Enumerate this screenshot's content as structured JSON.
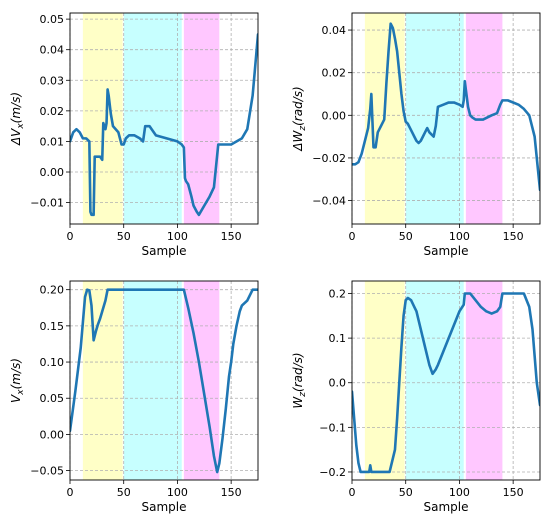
{
  "chart_data": [
    {
      "type": "line",
      "xlabel": "Sample",
      "ylabel": "ΔV",
      "ylabel_sub": "x",
      "ylabel_unit": "(m/s)",
      "xlim": [
        0,
        175
      ],
      "ylim": [
        -0.017,
        0.052
      ],
      "xticks": [
        0,
        50,
        100,
        150
      ],
      "xtick_labels": [
        "0",
        "50",
        "100",
        "150"
      ],
      "yticks": [
        -0.01,
        0.0,
        0.01,
        0.02,
        0.03,
        0.04,
        0.05
      ],
      "ytick_labels": [
        "−0.01",
        "0.00",
        "0.01",
        "0.02",
        "0.03",
        "0.04",
        "0.05"
      ],
      "grid": true,
      "bands": [
        {
          "x0": 12,
          "x1": 49,
          "color": "#ffff99"
        },
        {
          "x0": 50,
          "x1": 104,
          "color": "#99ffff"
        },
        {
          "x0": 106,
          "x1": 139,
          "color": "#ff99ff"
        }
      ],
      "series": [
        {
          "color": "#1f77b4",
          "x": [
            0,
            3,
            6,
            9,
            12,
            15,
            18,
            19,
            20,
            22,
            23,
            25,
            28,
            30,
            31,
            32,
            33,
            34,
            35,
            36,
            38,
            40,
            45,
            48,
            50,
            52,
            55,
            60,
            65,
            68,
            70,
            72,
            74,
            76,
            80,
            90,
            100,
            104,
            106,
            107,
            108,
            110,
            113,
            115,
            118,
            120,
            125,
            130,
            134,
            138,
            140,
            150,
            160,
            165,
            170,
            175
          ],
          "y": [
            0.01,
            0.013,
            0.014,
            0.013,
            0.011,
            0.011,
            0.01,
            -0.013,
            -0.014,
            -0.014,
            0.005,
            0.005,
            0.005,
            0.004,
            0.016,
            0.015,
            0.014,
            0.016,
            0.027,
            0.025,
            0.019,
            0.015,
            0.013,
            0.009,
            0.009,
            0.011,
            0.012,
            0.012,
            0.011,
            0.01,
            0.015,
            0.015,
            0.015,
            0.014,
            0.012,
            0.011,
            0.01,
            0.009,
            0.008,
            -0.002,
            -0.003,
            -0.004,
            -0.008,
            -0.011,
            -0.013,
            -0.014,
            -0.011,
            -0.008,
            -0.005,
            0.009,
            0.009,
            0.009,
            0.011,
            0.014,
            0.025,
            0.045
          ]
        }
      ]
    },
    {
      "type": "line",
      "xlabel": "Sample",
      "ylabel": "ΔW",
      "ylabel_sub": "z",
      "ylabel_unit": "(rad/s)",
      "xlim": [
        0,
        175
      ],
      "ylim": [
        -0.051,
        0.048
      ],
      "xticks": [
        0,
        50,
        100,
        150
      ],
      "xtick_labels": [
        "0",
        "50",
        "100",
        "150"
      ],
      "yticks": [
        -0.04,
        -0.02,
        0.0,
        0.02,
        0.04
      ],
      "ytick_labels": [
        "−0.04",
        "−0.02",
        "0.00",
        "0.02",
        "0.04"
      ],
      "grid": true,
      "bands": [
        {
          "x0": 12,
          "x1": 49,
          "color": "#ffff99"
        },
        {
          "x0": 50,
          "x1": 104,
          "color": "#99ffff"
        },
        {
          "x0": 106,
          "x1": 140,
          "color": "#ff99ff"
        }
      ],
      "series": [
        {
          "color": "#1f77b4",
          "x": [
            0,
            3,
            6,
            9,
            12,
            15,
            17,
            18,
            20,
            22,
            24,
            26,
            28,
            30,
            32,
            34,
            36,
            38,
            40,
            42,
            44,
            46,
            48,
            50,
            52,
            54,
            56,
            58,
            60,
            62,
            64,
            66,
            68,
            70,
            72,
            74,
            76,
            78,
            80,
            85,
            90,
            95,
            100,
            103,
            104,
            105,
            106,
            108,
            110,
            112,
            115,
            118,
            122,
            126,
            130,
            135,
            138,
            140,
            145,
            150,
            155,
            160,
            165,
            170,
            175
          ],
          "y": [
            -0.023,
            -0.023,
            -0.022,
            -0.018,
            -0.012,
            -0.006,
            0.003,
            0.01,
            -0.015,
            -0.015,
            -0.008,
            -0.006,
            -0.004,
            -0.002,
            0.015,
            0.03,
            0.043,
            0.041,
            0.036,
            0.03,
            0.02,
            0.01,
            0.002,
            -0.003,
            -0.004,
            -0.006,
            -0.008,
            -0.01,
            -0.012,
            -0.013,
            -0.012,
            -0.01,
            -0.008,
            -0.006,
            -0.008,
            -0.009,
            -0.01,
            -0.005,
            0.004,
            0.005,
            0.006,
            0.006,
            0.005,
            0.004,
            0.007,
            0.016,
            0.012,
            0.004,
            0.0,
            -0.001,
            -0.002,
            -0.002,
            -0.002,
            -0.001,
            0.0,
            0.001,
            0.005,
            0.007,
            0.007,
            0.006,
            0.005,
            0.003,
            0.0,
            -0.01,
            -0.035
          ]
        }
      ]
    },
    {
      "type": "line",
      "xlabel": "Sample",
      "ylabel": "V",
      "ylabel_sub": "x",
      "ylabel_unit": "(m/s)",
      "xlim": [
        0,
        175
      ],
      "ylim": [
        -0.063,
        0.212
      ],
      "xticks": [
        0,
        50,
        100,
        150
      ],
      "xtick_labels": [
        "0",
        "50",
        "100",
        "150"
      ],
      "yticks": [
        -0.05,
        0.0,
        0.05,
        0.1,
        0.15,
        0.2
      ],
      "ytick_labels": [
        "−0.05",
        "0.00",
        "0.05",
        "0.10",
        "0.15",
        "0.20"
      ],
      "grid": true,
      "bands": [
        {
          "x0": 12,
          "x1": 49,
          "color": "#ffff99"
        },
        {
          "x0": 50,
          "x1": 104,
          "color": "#99ffff"
        },
        {
          "x0": 106,
          "x1": 139,
          "color": "#ff99ff"
        }
      ],
      "series": [
        {
          "color": "#1f77b4",
          "x": [
            0,
            5,
            10,
            14,
            16,
            18,
            20,
            22,
            24,
            26,
            28,
            30,
            33,
            35,
            37,
            40,
            45,
            50,
            55,
            60,
            70,
            80,
            90,
            100,
            104,
            106,
            110,
            115,
            120,
            125,
            130,
            134,
            137,
            139,
            142,
            145,
            148,
            150,
            152,
            155,
            158,
            160,
            165,
            170,
            175
          ],
          "y": [
            0.005,
            0.06,
            0.12,
            0.19,
            0.2,
            0.199,
            0.178,
            0.13,
            0.142,
            0.152,
            0.16,
            0.17,
            0.185,
            0.2,
            0.2,
            0.2,
            0.2,
            0.2,
            0.2,
            0.2,
            0.2,
            0.2,
            0.2,
            0.2,
            0.2,
            0.2,
            0.175,
            0.14,
            0.1,
            0.055,
            0.01,
            -0.03,
            -0.052,
            -0.04,
            -0.005,
            0.035,
            0.08,
            0.1,
            0.125,
            0.15,
            0.17,
            0.178,
            0.185,
            0.2,
            0.2
          ]
        }
      ]
    },
    {
      "type": "line",
      "xlabel": "Sample",
      "ylabel": "W",
      "ylabel_sub": "z",
      "ylabel_unit": "(rad/s)",
      "xlim": [
        0,
        175
      ],
      "ylim": [
        -0.218,
        0.228
      ],
      "xticks": [
        0,
        50,
        100,
        150
      ],
      "xtick_labels": [
        "0",
        "50",
        "100",
        "150"
      ],
      "yticks": [
        -0.2,
        -0.1,
        0.0,
        0.1,
        0.2
      ],
      "ytick_labels": [
        "−0.2",
        "−0.1",
        "0.0",
        "0.1",
        "0.2"
      ],
      "grid": true,
      "bands": [
        {
          "x0": 12,
          "x1": 49,
          "color": "#ffff99"
        },
        {
          "x0": 50,
          "x1": 104,
          "color": "#99ffff"
        },
        {
          "x0": 106,
          "x1": 140,
          "color": "#ff99ff"
        }
      ],
      "series": [
        {
          "color": "#1f77b4",
          "x": [
            0,
            2,
            4,
            6,
            8,
            10,
            12,
            14,
            16,
            17,
            18,
            20,
            25,
            30,
            35,
            40,
            42,
            44,
            46,
            48,
            50,
            52,
            55,
            58,
            60,
            62,
            65,
            68,
            70,
            72,
            75,
            78,
            80,
            85,
            90,
            95,
            100,
            104,
            105,
            106,
            110,
            115,
            120,
            125,
            130,
            135,
            138,
            140,
            145,
            150,
            155,
            160,
            165,
            168,
            170,
            172,
            175
          ],
          "y": [
            -0.02,
            -0.08,
            -0.14,
            -0.18,
            -0.2,
            -0.2,
            -0.2,
            -0.2,
            -0.2,
            -0.185,
            -0.2,
            -0.2,
            -0.2,
            -0.2,
            -0.2,
            -0.15,
            -0.08,
            0.0,
            0.08,
            0.15,
            0.185,
            0.19,
            0.185,
            0.17,
            0.16,
            0.14,
            0.11,
            0.08,
            0.06,
            0.04,
            0.02,
            0.03,
            0.04,
            0.07,
            0.1,
            0.13,
            0.16,
            0.175,
            0.2,
            0.2,
            0.2,
            0.185,
            0.17,
            0.16,
            0.155,
            0.16,
            0.17,
            0.2,
            0.2,
            0.2,
            0.2,
            0.2,
            0.17,
            0.12,
            0.06,
            0.0,
            -0.05
          ]
        }
      ]
    }
  ]
}
